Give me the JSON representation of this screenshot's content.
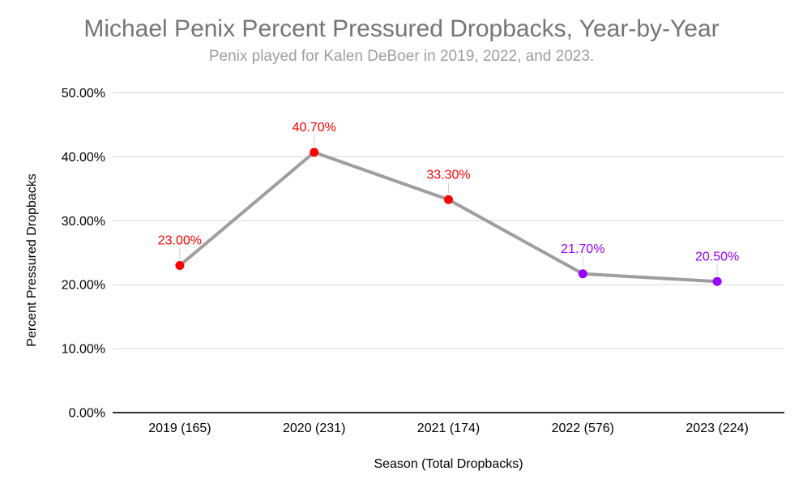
{
  "chart_data": {
    "type": "line",
    "title": "Michael Penix Percent Pressured Dropbacks, Year-by-Year",
    "subtitle": "Penix played for Kalen DeBoer in 2019, 2022, and 2023.",
    "xlabel": "Season (Total Dropbacks)",
    "ylabel": "Percent Pressured Dropbacks",
    "categories": [
      "2019 (165)",
      "2020 (231)",
      "2021 (174)",
      "2022 (576)",
      "2023 (224)"
    ],
    "values": [
      23.0,
      40.7,
      33.3,
      21.7,
      20.5
    ],
    "data_labels": [
      "23.00%",
      "40.70%",
      "33.30%",
      "21.70%",
      "20.50%"
    ],
    "point_colors": [
      "#ff0000",
      "#ff0000",
      "#ff0000",
      "#9900ff",
      "#9900ff"
    ],
    "label_colors": [
      "#ff0000",
      "#ff0000",
      "#ff0000",
      "#9900ff",
      "#9900ff"
    ],
    "ylim": [
      0,
      50
    ],
    "ytick_values": [
      0,
      10,
      20,
      30,
      40,
      50
    ],
    "yticks": [
      "0.00%",
      "10.00%",
      "20.00%",
      "30.00%",
      "40.00%",
      "50.00%"
    ],
    "grid": true,
    "legend_position": "none",
    "line_color": "#9e9e9e",
    "gridline_color": "#d9d9d9",
    "axis_line_color": "#333333",
    "connector_color": "#cfcfcf",
    "background_color": "#ffffff",
    "title_color": "#757575",
    "subtitle_color": "#9e9e9e"
  }
}
